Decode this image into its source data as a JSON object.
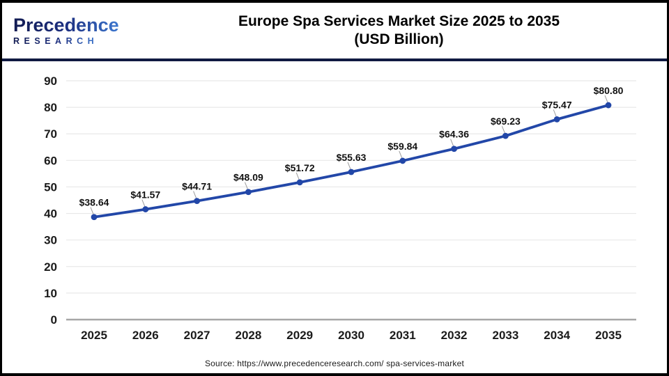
{
  "header": {
    "logo": {
      "brand": "Precedence",
      "subtitle": "RESEARCH"
    },
    "title_line1": "Europe Spa Services Market Size 2025 to 2035",
    "title_line2": "(USD Billion)"
  },
  "chart_data": {
    "type": "line",
    "title": "Europe Spa Services Market Size 2025 to 2035 (USD Billion)",
    "categories": [
      "2025",
      "2026",
      "2027",
      "2028",
      "2029",
      "2030",
      "2031",
      "2032",
      "2033",
      "2034",
      "2035"
    ],
    "values": [
      38.64,
      41.57,
      44.71,
      48.09,
      51.72,
      55.63,
      59.84,
      64.36,
      69.23,
      75.47,
      80.8
    ],
    "value_labels": [
      "$38.64",
      "$41.57",
      "$44.71",
      "$48.09",
      "$51.72",
      "$55.63",
      "$59.84",
      "$64.36",
      "$69.23",
      "$75.47",
      "$80.80"
    ],
    "unit": "USD Billion",
    "ylim": [
      0,
      90
    ],
    "yticks": [
      0,
      10,
      20,
      30,
      40,
      50,
      60,
      70,
      80,
      90
    ],
    "grid": true,
    "legend": "none",
    "line_color": "#2247a8",
    "marker_color": "#2247a8",
    "gridline_color": "#e8e8e8",
    "axis_line_color": "#a6a6a6",
    "label_color": "#111111",
    "tick_label_color": "#1a1a1a"
  },
  "footer": {
    "source": "Source: https://www.precedenceresearch.com/ spa-services-market"
  }
}
